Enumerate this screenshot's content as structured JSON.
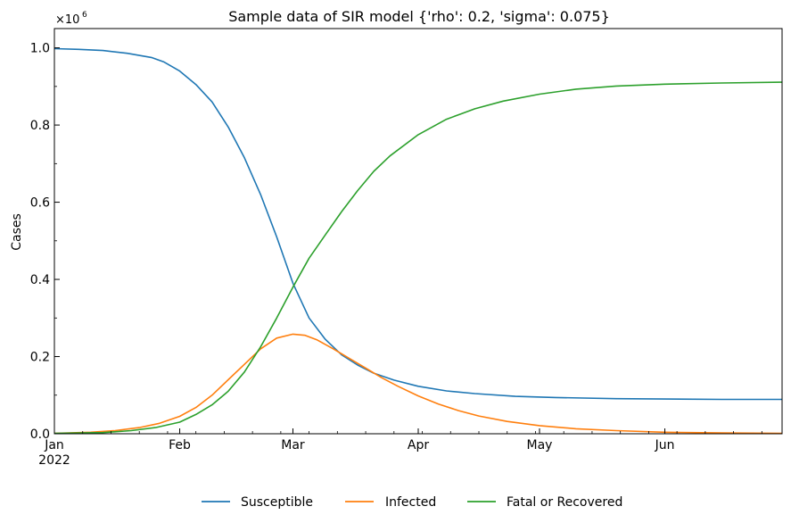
{
  "chart_data": {
    "type": "line",
    "title": "Sample data of SIR model {'rho': 0.2, 'sigma': 0.075}",
    "xlabel": "",
    "ylabel": "Cases",
    "y_multiplier_label": "×10",
    "y_multiplier_exp": "6",
    "xlim": [
      "2022-01-01",
      "2022-06-30"
    ],
    "ylim": [
      0,
      1.05
    ],
    "x_ticks": [
      {
        "date": "2022-01-01",
        "label": "Jan",
        "sublabel": "2022"
      },
      {
        "date": "2022-02-01",
        "label": "Feb",
        "sublabel": ""
      },
      {
        "date": "2022-03-01",
        "label": "Mar",
        "sublabel": ""
      },
      {
        "date": "2022-04-01",
        "label": "Apr",
        "sublabel": ""
      },
      {
        "date": "2022-05-01",
        "label": "May",
        "sublabel": ""
      },
      {
        "date": "2022-06-01",
        "label": "Jun",
        "sublabel": ""
      }
    ],
    "y_ticks": [
      {
        "value": 0.0,
        "label": "0.0"
      },
      {
        "value": 0.2,
        "label": "0.2"
      },
      {
        "value": 0.4,
        "label": "0.4"
      },
      {
        "value": 0.6,
        "label": "0.6"
      },
      {
        "value": 0.8,
        "label": "0.8"
      },
      {
        "value": 1.0,
        "label": "1.0"
      }
    ],
    "legend": "bottom-center",
    "grid": false,
    "series": [
      {
        "name": "Susceptible",
        "color": "#1f77b4",
        "points": [
          [
            "2022-01-01",
            0.998
          ],
          [
            "2022-01-07",
            0.996
          ],
          [
            "2022-01-13",
            0.993
          ],
          [
            "2022-01-19",
            0.986
          ],
          [
            "2022-01-25",
            0.975
          ],
          [
            "2022-01-28",
            0.964
          ],
          [
            "2022-02-01",
            0.94
          ],
          [
            "2022-02-05",
            0.905
          ],
          [
            "2022-02-09",
            0.86
          ],
          [
            "2022-02-13",
            0.795
          ],
          [
            "2022-02-17",
            0.715
          ],
          [
            "2022-02-21",
            0.62
          ],
          [
            "2022-02-25",
            0.51
          ],
          [
            "2022-03-01",
            0.39
          ],
          [
            "2022-03-05",
            0.3
          ],
          [
            "2022-03-09",
            0.245
          ],
          [
            "2022-03-13",
            0.205
          ],
          [
            "2022-03-17",
            0.178
          ],
          [
            "2022-03-21",
            0.157
          ],
          [
            "2022-03-26",
            0.139
          ],
          [
            "2022-04-01",
            0.123
          ],
          [
            "2022-04-08",
            0.111
          ],
          [
            "2022-04-15",
            0.104
          ],
          [
            "2022-04-25",
            0.097
          ],
          [
            "2022-05-05",
            0.094
          ],
          [
            "2022-05-20",
            0.091
          ],
          [
            "2022-06-01",
            0.09
          ],
          [
            "2022-06-15",
            0.089
          ],
          [
            "2022-06-30",
            0.089
          ]
        ]
      },
      {
        "name": "Infected",
        "color": "#ff7f0e",
        "points": [
          [
            "2022-01-01",
            0.001
          ],
          [
            "2022-01-10",
            0.004
          ],
          [
            "2022-01-16",
            0.008
          ],
          [
            "2022-01-22",
            0.016
          ],
          [
            "2022-01-27",
            0.027
          ],
          [
            "2022-02-01",
            0.045
          ],
          [
            "2022-02-05",
            0.068
          ],
          [
            "2022-02-09",
            0.1
          ],
          [
            "2022-02-13",
            0.14
          ],
          [
            "2022-02-17",
            0.18
          ],
          [
            "2022-02-21",
            0.22
          ],
          [
            "2022-02-25",
            0.248
          ],
          [
            "2022-03-01",
            0.258
          ],
          [
            "2022-03-04",
            0.255
          ],
          [
            "2022-03-07",
            0.243
          ],
          [
            "2022-03-11",
            0.22
          ],
          [
            "2022-03-15",
            0.195
          ],
          [
            "2022-03-19",
            0.17
          ],
          [
            "2022-03-23",
            0.145
          ],
          [
            "2022-03-27",
            0.123
          ],
          [
            "2022-04-01",
            0.098
          ],
          [
            "2022-04-06",
            0.077
          ],
          [
            "2022-04-11",
            0.06
          ],
          [
            "2022-04-16",
            0.046
          ],
          [
            "2022-04-23",
            0.032
          ],
          [
            "2022-05-01",
            0.021
          ],
          [
            "2022-05-10",
            0.013
          ],
          [
            "2022-05-20",
            0.008
          ],
          [
            "2022-06-01",
            0.004
          ],
          [
            "2022-06-15",
            0.002
          ],
          [
            "2022-06-30",
            0.001
          ]
        ]
      },
      {
        "name": "Fatal or Recovered",
        "color": "#2ca02c",
        "points": [
          [
            "2022-01-01",
            0.001
          ],
          [
            "2022-01-13",
            0.003
          ],
          [
            "2022-01-20",
            0.008
          ],
          [
            "2022-01-26",
            0.016
          ],
          [
            "2022-02-01",
            0.03
          ],
          [
            "2022-02-05",
            0.05
          ],
          [
            "2022-02-09",
            0.075
          ],
          [
            "2022-02-13",
            0.11
          ],
          [
            "2022-02-17",
            0.16
          ],
          [
            "2022-02-21",
            0.225
          ],
          [
            "2022-02-25",
            0.3
          ],
          [
            "2022-03-01",
            0.38
          ],
          [
            "2022-03-05",
            0.455
          ],
          [
            "2022-03-09",
            0.515
          ],
          [
            "2022-03-13",
            0.575
          ],
          [
            "2022-03-17",
            0.63
          ],
          [
            "2022-03-21",
            0.68
          ],
          [
            "2022-03-25",
            0.72
          ],
          [
            "2022-04-01",
            0.775
          ],
          [
            "2022-04-08",
            0.815
          ],
          [
            "2022-04-15",
            0.842
          ],
          [
            "2022-04-22",
            0.862
          ],
          [
            "2022-05-01",
            0.88
          ],
          [
            "2022-05-10",
            0.893
          ],
          [
            "2022-05-20",
            0.901
          ],
          [
            "2022-06-01",
            0.906
          ],
          [
            "2022-06-15",
            0.909
          ],
          [
            "2022-06-30",
            0.911
          ]
        ]
      }
    ]
  }
}
